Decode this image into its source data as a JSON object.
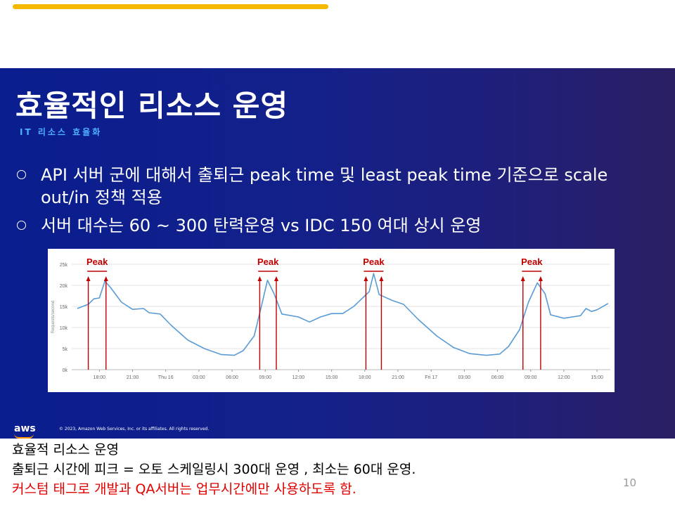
{
  "slide": {
    "title": "효율적인 리소스 운영",
    "subtitle": "IT 리소스 효율화",
    "bullets": [
      "API 서버 군에 대해서 출퇴근 peak time 및 least peak time 기준으로 scale out/in 정책 적용",
      "서버 대수는 60 ~ 300 탄력운영 vs IDC 150 여대 상시 운영"
    ],
    "logo_text": "aws",
    "copyright": "© 2023, Amazon Web Services, Inc. or its affiliates. All rights reserved."
  },
  "chart_data": {
    "type": "line",
    "ylabel": "Requests/second",
    "y_ticks": [
      "25k",
      "20k",
      "15k",
      "10k",
      "5k",
      "0k"
    ],
    "ylim": [
      0,
      25000
    ],
    "x_ticks": [
      "18:00",
      "21:00",
      "Thu 16",
      "03:00",
      "06:00",
      "09:00",
      "12:00",
      "15:00",
      "18:00",
      "21:00",
      "Fri 17",
      "03:00",
      "06:00",
      "09:00",
      "12:00",
      "15:00"
    ],
    "x_hours": [
      0,
      3,
      6,
      9,
      12,
      15,
      18,
      21,
      24,
      27,
      30,
      33,
      36,
      39,
      42,
      45
    ],
    "series": [
      {
        "color": "#5b9bd5",
        "points": [
          [
            -2,
            14500
          ],
          [
            -1,
            15500
          ],
          [
            -0.5,
            16800
          ],
          [
            0,
            17000
          ],
          [
            0.5,
            21000
          ],
          [
            1,
            19500
          ],
          [
            2,
            16000
          ],
          [
            3,
            14300
          ],
          [
            4,
            14500
          ],
          [
            4.5,
            13500
          ],
          [
            5.5,
            13200
          ],
          [
            6.5,
            10500
          ],
          [
            8,
            7000
          ],
          [
            9.5,
            5000
          ],
          [
            11,
            3600
          ],
          [
            12.2,
            3400
          ],
          [
            13,
            4500
          ],
          [
            14,
            8000
          ],
          [
            14.6,
            14500
          ],
          [
            15.2,
            21200
          ],
          [
            15.8,
            18000
          ],
          [
            16.5,
            13200
          ],
          [
            18,
            12500
          ],
          [
            19,
            11300
          ],
          [
            20,
            12500
          ],
          [
            21,
            13300
          ],
          [
            22,
            13300
          ],
          [
            23,
            15000
          ],
          [
            24,
            17500
          ],
          [
            24.4,
            18500
          ],
          [
            24.8,
            22800
          ],
          [
            25.3,
            17800
          ],
          [
            26.5,
            16400
          ],
          [
            27.5,
            15500
          ],
          [
            28.8,
            12000
          ],
          [
            30.5,
            8000
          ],
          [
            32,
            5300
          ],
          [
            33.5,
            3800
          ],
          [
            35,
            3400
          ],
          [
            36.2,
            3700
          ],
          [
            37,
            5500
          ],
          [
            38,
            9500
          ],
          [
            38.8,
            16000
          ],
          [
            39.6,
            20600
          ],
          [
            40.3,
            18000
          ],
          [
            40.8,
            13000
          ],
          [
            42,
            12200
          ],
          [
            43.5,
            12800
          ],
          [
            44,
            14500
          ],
          [
            44.5,
            13800
          ],
          [
            45,
            14200
          ],
          [
            46,
            15700
          ]
        ]
      }
    ],
    "peaks": [
      {
        "label": "Peak",
        "x_start": -1,
        "x_end": 0.6
      },
      {
        "label": "Peak",
        "x_start": 14.5,
        "x_end": 16
      },
      {
        "label": "Peak",
        "x_start": 24.1,
        "x_end": 25.5
      },
      {
        "label": "Peak",
        "x_start": 38.3,
        "x_end": 39.9
      }
    ],
    "peak_color": "#c00000"
  },
  "notes": {
    "line1": "효율적 리소스 운영",
    "line2": "출퇴근 시간에 피크 = 오토 스케일링시 300대 운영 , 최소는 60대 운영.",
    "line3": "커스텀 태그로 개발과 QA서버는 업무시간에만 사용하도록 함."
  },
  "page_number": "10"
}
